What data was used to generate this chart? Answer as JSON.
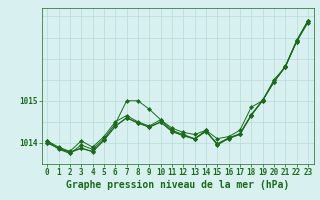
{
  "xlabel": "Graphe pression niveau de la mer (hPa)",
  "background_color": "#d8f0f0",
  "grid_color": "#b8dada",
  "line_color": "#1a6b1a",
  "hours": [
    0,
    1,
    2,
    3,
    4,
    5,
    6,
    7,
    8,
    9,
    10,
    11,
    12,
    13,
    14,
    15,
    16,
    17,
    18,
    19,
    20,
    21,
    22,
    23
  ],
  "series": [
    [
      1014.05,
      1013.85,
      1013.75,
      1013.95,
      1013.85,
      1014.1,
      1014.45,
      1015.0,
      1015.0,
      1014.8,
      1014.55,
      1014.35,
      1014.25,
      1014.2,
      1014.3,
      1014.1,
      1014.15,
      1014.3,
      1014.85,
      1015.0,
      1015.5,
      1015.8,
      1016.4,
      1016.85
    ],
    [
      1014.05,
      1013.9,
      1013.8,
      1014.05,
      1013.9,
      1014.15,
      1014.5,
      1014.65,
      1014.5,
      1014.4,
      1014.55,
      1014.3,
      1014.2,
      1014.1,
      1014.3,
      1013.95,
      1014.1,
      1014.2,
      1014.65,
      1015.0,
      1015.45,
      1015.8,
      1016.4,
      1016.9
    ],
    [
      1014.0,
      1013.88,
      1013.78,
      1013.88,
      1013.8,
      1014.07,
      1014.4,
      1014.6,
      1014.48,
      1014.38,
      1014.5,
      1014.28,
      1014.18,
      1014.1,
      1014.28,
      1013.98,
      1014.12,
      1014.22,
      1014.67,
      1015.02,
      1015.45,
      1015.82,
      1016.43,
      1016.9
    ],
    [
      1014.0,
      1013.87,
      1013.77,
      1013.87,
      1013.79,
      1014.06,
      1014.39,
      1014.59,
      1014.47,
      1014.37,
      1014.49,
      1014.27,
      1014.17,
      1014.09,
      1014.27,
      1013.97,
      1014.11,
      1014.21,
      1014.66,
      1015.01,
      1015.44,
      1015.81,
      1016.42,
      1016.89
    ]
  ],
  "ylim": [
    1013.5,
    1017.2
  ],
  "yticks": [
    1014.0,
    1015.0
  ],
  "xlim": [
    -0.5,
    23.5
  ],
  "xticks": [
    0,
    1,
    2,
    3,
    4,
    5,
    6,
    7,
    8,
    9,
    10,
    11,
    12,
    13,
    14,
    15,
    16,
    17,
    18,
    19,
    20,
    21,
    22,
    23
  ],
  "tick_fontsize": 5.5,
  "label_fontsize": 7,
  "marker": "D",
  "markersize": 2.0
}
